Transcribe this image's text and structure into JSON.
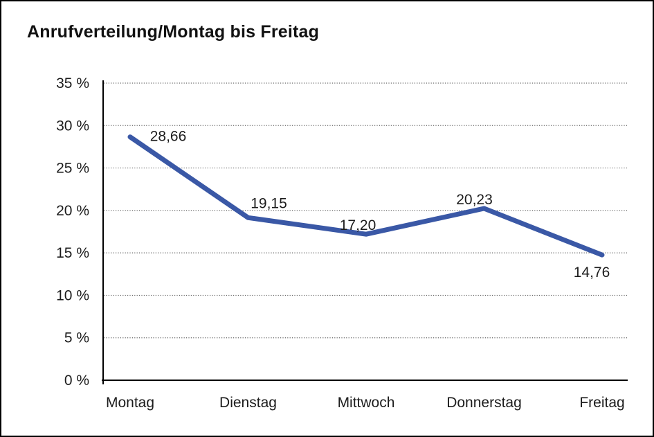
{
  "chart_data": {
    "type": "line",
    "title": "Anrufverteilung/Montag bis Freitag",
    "categories": [
      "Montag",
      "Dienstag",
      "Mittwoch",
      "Donnerstag",
      "Freitag"
    ],
    "values": [
      28.66,
      19.15,
      17.2,
      20.23,
      14.76
    ],
    "value_labels": [
      "28,66",
      "19,15",
      "17,20",
      "20,23",
      "14,76"
    ],
    "y_ticks": [
      {
        "value": 0,
        "label": "0 %"
      },
      {
        "value": 5,
        "label": "5 %"
      },
      {
        "value": 10,
        "label": "10 %"
      },
      {
        "value": 15,
        "label": "15 %"
      },
      {
        "value": 20,
        "label": "20 %"
      },
      {
        "value": 25,
        "label": "25 %"
      },
      {
        "value": 30,
        "label": "30 %"
      },
      {
        "value": 35,
        "label": "35 %"
      }
    ],
    "ylim": [
      0,
      35
    ],
    "xlabel": "",
    "ylabel": "",
    "legend": "none",
    "grid": "horizontal-dotted",
    "colors": {
      "line": "#3A58A6",
      "axis": "#000000",
      "gridline": "#666666",
      "text": "#1c1c1c",
      "background": "#ffffff",
      "border": "#000000"
    }
  }
}
